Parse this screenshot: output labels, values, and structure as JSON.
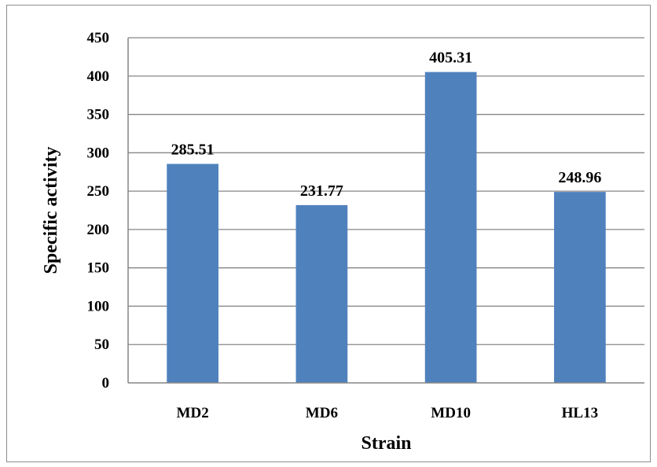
{
  "chart_data": {
    "type": "bar",
    "categories": [
      "MD2",
      "MD6",
      "MD10",
      "HL13"
    ],
    "values": [
      285.51,
      231.77,
      405.31,
      248.96
    ],
    "data_labels": [
      "285.51",
      "231.77",
      "405.31",
      "248.96"
    ],
    "title": "",
    "xlabel": "Strain",
    "ylabel": "Specific activity",
    "ylim": [
      0,
      450
    ],
    "yticks": [
      0,
      50,
      100,
      150,
      200,
      250,
      300,
      350,
      400,
      450
    ],
    "grid": true,
    "legend": "none",
    "bar_color": "#4f81bd",
    "grid_color": "#868686"
  }
}
